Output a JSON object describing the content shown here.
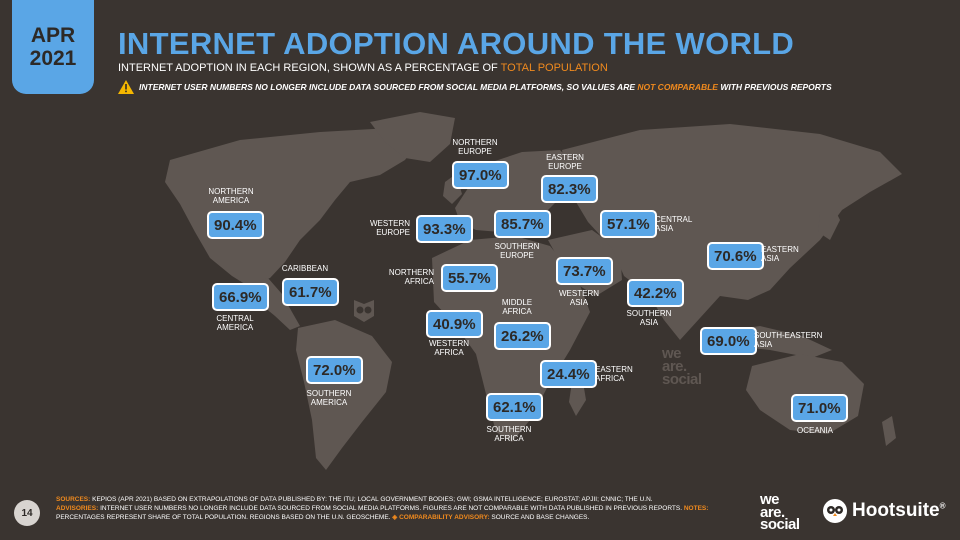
{
  "header": {
    "month": "APR",
    "year": "2021",
    "title": "INTERNET ADOPTION AROUND THE WORLD",
    "subtitle_prefix": "INTERNET ADOPTION IN EACH REGION, SHOWN AS A PERCENTAGE OF ",
    "subtitle_highlight": "TOTAL POPULATION",
    "advisory_prefix": "INTERNET USER NUMBERS NO LONGER INCLUDE DATA SOURCED FROM SOCIAL MEDIA PLATFORMS, SO VALUES ARE ",
    "advisory_highlight": "NOT COMPARABLE",
    "advisory_suffix": " WITH PREVIOUS REPORTS"
  },
  "regions": {
    "northern_america": {
      "name_line1": "NORTHERN",
      "name_line2": "AMERICA",
      "value": "90.4%"
    },
    "caribbean": {
      "name_line1": "CARIBBEAN",
      "value": "61.7%"
    },
    "central_america": {
      "name_line1": "CENTRAL",
      "name_line2": "AMERICA",
      "value": "66.9%"
    },
    "southern_america": {
      "name_line1": "SOUTHERN",
      "name_line2": "AMERICA",
      "value": "72.0%"
    },
    "northern_europe": {
      "name_line1": "NORTHERN",
      "name_line2": "EUROPE",
      "value": "97.0%"
    },
    "western_europe": {
      "name_line1": "WESTERN",
      "name_line2": "EUROPE",
      "value": "93.3%"
    },
    "southern_europe": {
      "name_line1": "SOUTHERN",
      "name_line2": "EUROPE",
      "value": "85.7%"
    },
    "eastern_europe": {
      "name_line1": "EASTERN",
      "name_line2": "EUROPE",
      "value": "82.3%"
    },
    "northern_africa": {
      "name_line1": "NORTHERN",
      "name_line2": "AFRICA",
      "value": "55.7%"
    },
    "western_africa": {
      "name_line1": "WESTERN",
      "name_line2": "AFRICA",
      "value": "40.9%"
    },
    "middle_africa": {
      "name_line1": "MIDDLE",
      "name_line2": "AFRICA",
      "value": "26.2%"
    },
    "eastern_africa": {
      "name_line1": "EASTERN",
      "name_line2": "AFRICA",
      "value": "24.4%"
    },
    "southern_africa": {
      "name_line1": "SOUTHERN",
      "name_line2": "AFRICA",
      "value": "62.1%"
    },
    "western_asia": {
      "name_line1": "WESTERN",
      "name_line2": "ASIA",
      "value": "73.7%"
    },
    "central_asia": {
      "name_line1": "CENTRAL",
      "name_line2": "ASIA",
      "value": "57.1%"
    },
    "southern_asia": {
      "name_line1": "SOUTHERN",
      "name_line2": "ASIA",
      "value": "42.2%"
    },
    "eastern_asia": {
      "name_line1": "EASTERN",
      "name_line2": "ASIA",
      "value": "70.6%"
    },
    "south_eastern_asia": {
      "name_line1": "SOUTH-EASTERN",
      "name_line2": "ASIA",
      "value": "69.0%"
    },
    "oceania": {
      "name_line1": "OCEANIA",
      "value": "71.0%"
    }
  },
  "watermark": {
    "line1": "we",
    "line2": "are.",
    "line3": "social"
  },
  "footer": {
    "page_number": "14",
    "sources_label": "SOURCES:",
    "sources_text": " KEPIOS (APR 2021) BASED ON EXTRAPOLATIONS OF DATA PUBLISHED BY: THE ITU; LOCAL GOVERNMENT BODIES; GWI; GSMA INTELLIGENCE; EUROSTAT; APJII; CNNIC; THE U.N.",
    "advisories_label": "ADVISORIES:",
    "advisories_text": " INTERNET USER NUMBERS NO LONGER INCLUDE DATA SOURCED FROM SOCIAL MEDIA PLATFORMS. FIGURES ARE NOT COMPARABLE WITH DATA PUBLISHED IN PREVIOUS REPORTS.",
    "notes_label": "NOTES:",
    "notes_text": " PERCENTAGES REPRESENT SHARE OF TOTAL POPULATION. REGIONS BASED ON THE U.N. GEOSCHEME.",
    "comparability_label": "◈ COMPARABILITY ADVISORY:",
    "comparability_text": " SOURCE AND BASE CHANGES."
  },
  "brands": {
    "ws_line1": "we",
    "ws_line2": "are.",
    "ws_line3": "social",
    "hootsuite": "Hootsuite",
    "hootsuite_reg": "®"
  },
  "colors": {
    "accent_blue": "#5aa6e6",
    "accent_orange": "#f08a1e",
    "background": "#3a3430",
    "land": "#5f5752"
  }
}
